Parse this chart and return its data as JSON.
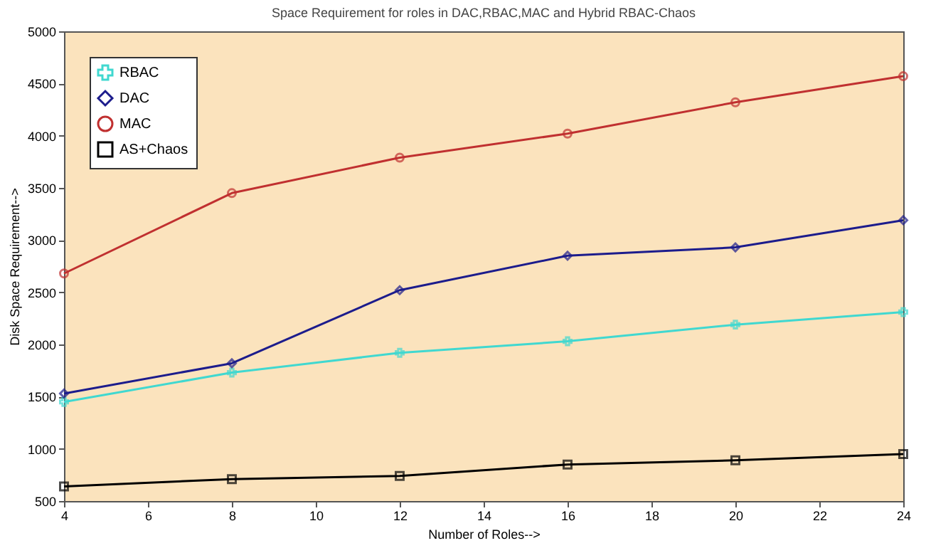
{
  "chart_data": {
    "type": "line",
    "title": "Space Requirement for roles in DAC,RBAC,MAC and Hybrid RBAC-Chaos",
    "xlabel": "Number of Roles-->",
    "ylabel": "Disk Space Requirement-->",
    "x": [
      4,
      8,
      12,
      16,
      20,
      24
    ],
    "series": [
      {
        "name": "RBAC",
        "color": "#40d8d0",
        "marker": "cross",
        "values": [
          1450,
          1730,
          1920,
          2030,
          2190,
          2310
        ]
      },
      {
        "name": "DAC",
        "color": "#1c1c8c",
        "marker": "diamond",
        "values": [
          1530,
          1820,
          2520,
          2850,
          2930,
          3190
        ]
      },
      {
        "name": "MAC",
        "color": "#c03030",
        "marker": "circle",
        "values": [
          2680,
          3450,
          3790,
          4020,
          4320,
          4570
        ]
      },
      {
        "name": "AS+Chaos",
        "color": "#000000",
        "marker": "square",
        "values": [
          640,
          710,
          740,
          850,
          890,
          950
        ]
      }
    ],
    "xlim": [
      4,
      24
    ],
    "xticks": [
      4,
      6,
      8,
      10,
      12,
      14,
      16,
      18,
      20,
      22,
      24
    ],
    "ylim": [
      500,
      5000
    ],
    "yticks": [
      500,
      1000,
      1500,
      2000,
      2500,
      3000,
      3500,
      4000,
      4500,
      5000
    ],
    "grid": false,
    "legend": "top left",
    "line_style": "solid"
  }
}
